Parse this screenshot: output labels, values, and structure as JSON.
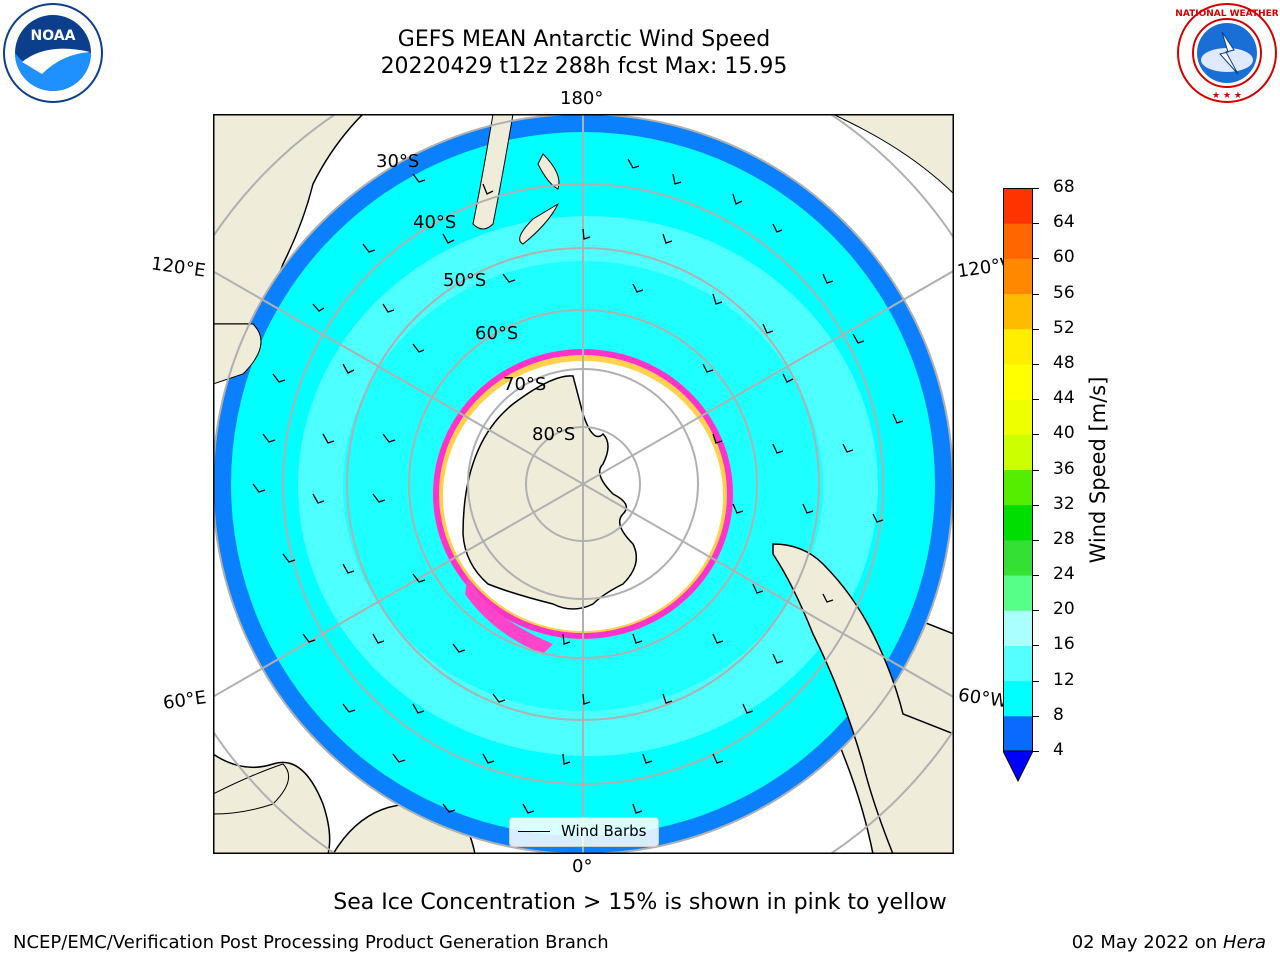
{
  "title": {
    "line1": "GEFS MEAN Antarctic Wind Speed",
    "line2": "20220429 t12z 288h fcst   Max: 15.95"
  },
  "map": {
    "projection": "south-polar-stereographic",
    "lon_labels": {
      "top": "180°",
      "bottom": "0°",
      "upper_left": "120°E",
      "upper_right": "120°W",
      "lower_left": "60°E",
      "lower_right": "60°W"
    },
    "lat_labels": [
      "30°S",
      "40°S",
      "50°S",
      "60°S",
      "70°S",
      "80°S"
    ],
    "legend_label": "Wind Barbs",
    "colors": {
      "land": "#efecda",
      "sea_ice_white": "#ffffff",
      "ice_edge_pink": "#ff33cc",
      "ice_edge_yellow": "#ffd24d",
      "wind_4_8": "#0a80ff",
      "wind_8_12": "#00ffff",
      "wind_12_16": "#55ffff",
      "grid": "#b0b0b0"
    }
  },
  "colorbar": {
    "label": "Wind Speed [m/s]",
    "ticks": [
      "68",
      "64",
      "60",
      "56",
      "52",
      "48",
      "44",
      "40",
      "36",
      "32",
      "28",
      "24",
      "20",
      "16",
      "12",
      "8",
      "4"
    ],
    "bin_colors": [
      "#0a6aff",
      "#00ffff",
      "#55ffff",
      "#aaffff",
      "#55ff88",
      "#33e033",
      "#00dd00",
      "#55ee00",
      "#ccff00",
      "#eeff00",
      "#ffff00",
      "#ffee00",
      "#ffbb00",
      "#ff8800",
      "#ff6600",
      "#ff3300",
      "#ff0000"
    ],
    "extend_color": "#0000ff"
  },
  "caption": "Sea Ice Concentration > 15% is shown in pink to yellow",
  "footer": {
    "left": "NCEP/EMC/Verification Post Processing Product Generation Branch",
    "date": "02 May 2022 on ",
    "machine": "Hera"
  },
  "logos": {
    "noaa_text": "NOAA",
    "nws_text": "NATIONAL WEATHER SERVICE"
  }
}
